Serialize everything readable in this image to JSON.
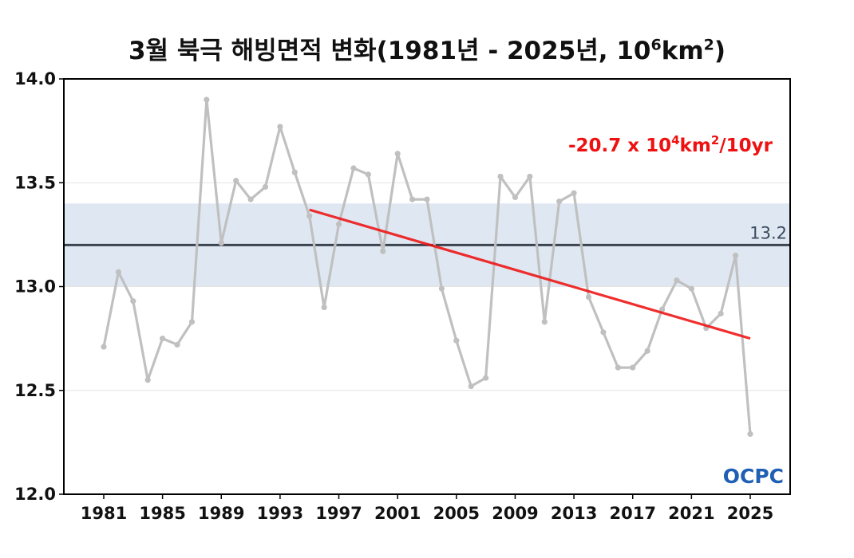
{
  "title": {
    "main": "3월 북극 해빙면적 변화(1981년 - 2025년, 10",
    "sup1": "6",
    "mid": "km",
    "sup2": "2",
    "end": ")"
  },
  "trend_label": {
    "pre": "-20.7 x 10",
    "sup1": "4",
    "mid": "km",
    "sup2": "2",
    "post": "/10yr"
  },
  "reference_label": "13.2",
  "logo_text": "OCPC",
  "colors": {
    "series": "#c0c0c0",
    "trend": "#ee1111",
    "reference_line": "#3b4350",
    "band": "#dfe8f2",
    "grid": "#e4e4e4",
    "logo": "#1f5fb4"
  },
  "chart_data": {
    "type": "line",
    "x": [
      1981,
      1982,
      1983,
      1984,
      1985,
      1986,
      1987,
      1988,
      1989,
      1990,
      1991,
      1992,
      1993,
      1994,
      1995,
      1996,
      1997,
      1998,
      1999,
      2000,
      2001,
      2002,
      2003,
      2004,
      2005,
      2006,
      2007,
      2008,
      2009,
      2010,
      2011,
      2012,
      2013,
      2014,
      2015,
      2016,
      2017,
      2018,
      2019,
      2020,
      2021,
      2022,
      2023,
      2024,
      2025
    ],
    "series": [
      {
        "values": [
          12.71,
          13.07,
          12.93,
          12.55,
          12.75,
          12.72,
          12.83,
          13.9,
          13.21,
          13.51,
          13.42,
          13.48,
          13.77,
          13.55,
          13.34,
          12.9,
          13.3,
          13.57,
          13.54,
          13.17,
          13.64,
          13.42,
          13.42,
          12.99,
          12.74,
          12.52,
          12.56,
          13.53,
          13.43,
          13.53,
          12.83,
          13.41,
          13.45,
          12.95,
          12.78,
          12.61,
          12.61,
          12.69,
          12.89,
          13.03,
          12.99,
          12.8,
          12.87,
          13.15,
          12.29
        ]
      }
    ],
    "trend": {
      "x_start": 1995,
      "y_start": 13.37,
      "x_end": 2025,
      "y_end": 12.75,
      "rate": "-20.7 x 10^4km^2/10yr"
    },
    "reference": {
      "value": 13.2,
      "band": [
        13.0,
        13.4
      ]
    },
    "xticks": [
      1981,
      1985,
      1989,
      1993,
      1997,
      2001,
      2005,
      2009,
      2013,
      2017,
      2021,
      2025
    ],
    "yticks": [
      "12.0",
      "12.5",
      "13.0",
      "13.5",
      "14.0"
    ],
    "xlim": [
      1981,
      2025
    ],
    "ylim": [
      12.0,
      14.0
    ],
    "grid": true,
    "xlabel": "",
    "ylabel": ""
  }
}
